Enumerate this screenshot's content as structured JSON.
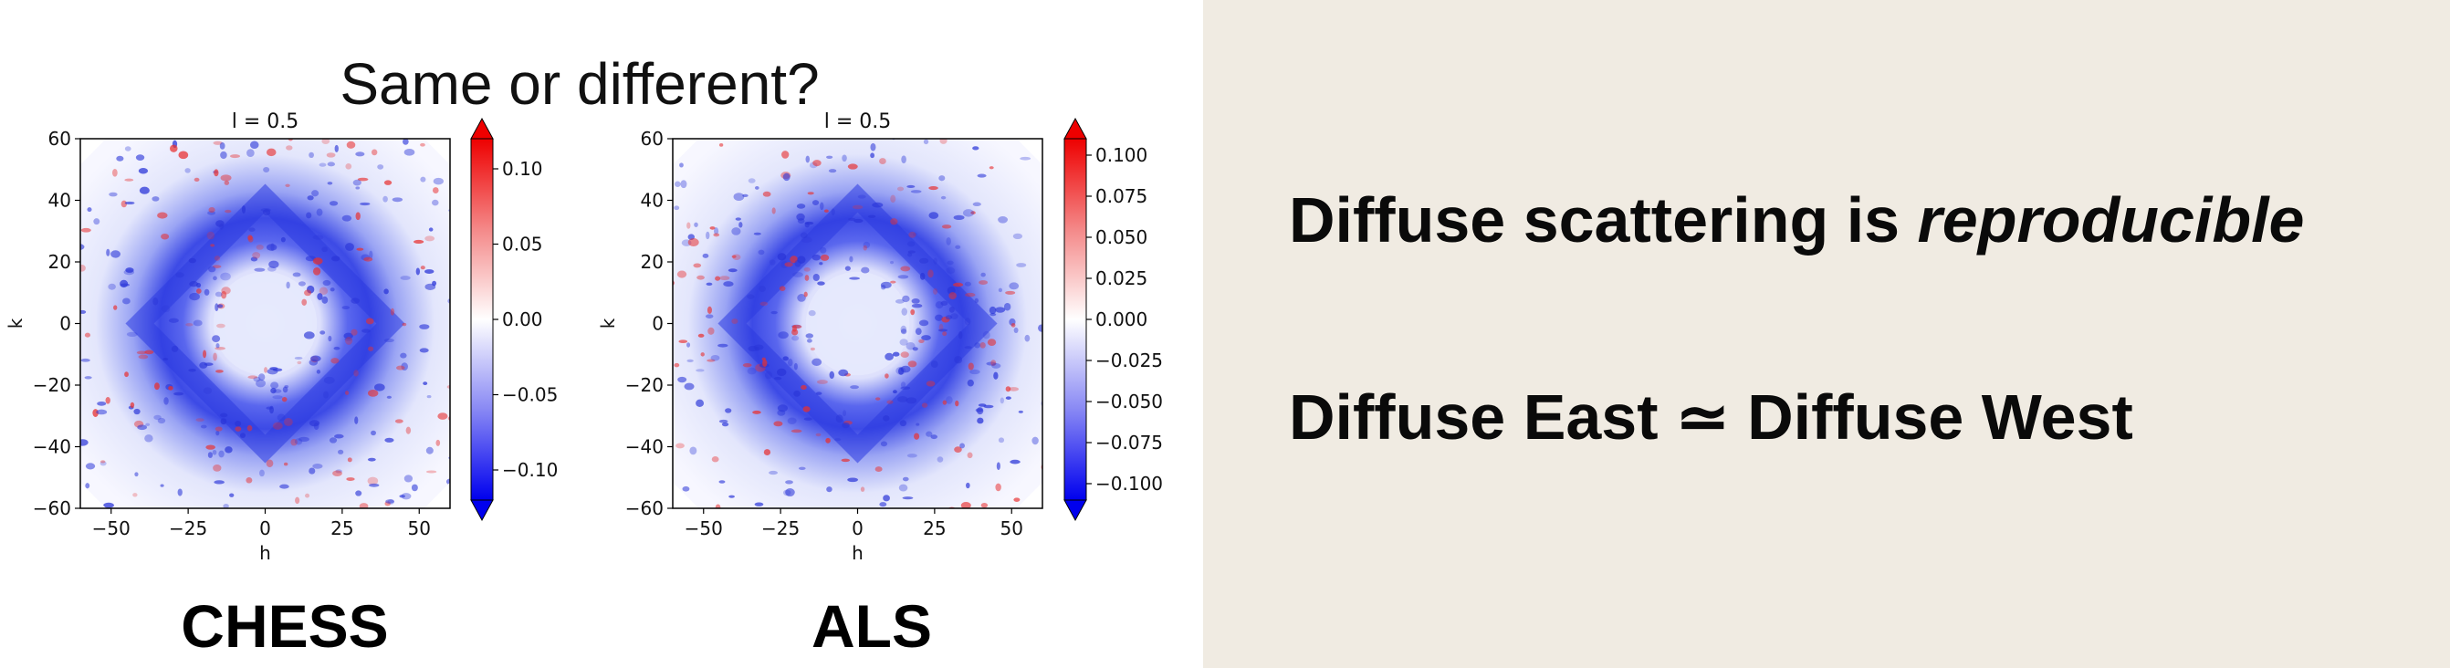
{
  "slide": {
    "question": "Same or different?",
    "headline_prefix": "Diffuse scattering is ",
    "headline_emphasis": "reproducible",
    "equation": "Diffuse East ≃ Diffuse West"
  },
  "colors": {
    "right_background": "#f0ebe2",
    "positive": "#e01010",
    "negative": "#1010e0",
    "neutral": "#ffffff"
  },
  "chart_data": [
    {
      "type": "heatmap",
      "facility": "CHESS",
      "title": "l = 0.5",
      "xlabel": "h",
      "ylabel": "k",
      "xticks": [
        "−50",
        "−25",
        "0",
        "25",
        "50"
      ],
      "yticks": [
        "60",
        "40",
        "20",
        "0",
        "−20",
        "−40",
        "−60"
      ],
      "xlim": [
        -60,
        60
      ],
      "ylim": [
        -60,
        60
      ],
      "colorbar": {
        "ticks": [
          "0.10",
          "0.05",
          "0.00",
          "−0.05",
          "−0.10"
        ],
        "tick_values": [
          0.1,
          0.05,
          0.0,
          -0.05,
          -0.1
        ],
        "range": [
          -0.12,
          0.12
        ],
        "colormap": "bwr",
        "extend": "both"
      }
    },
    {
      "type": "heatmap",
      "facility": "ALS",
      "title": "l = 0.5",
      "xlabel": "h",
      "ylabel": "k",
      "xticks": [
        "−50",
        "−25",
        "0",
        "25",
        "50"
      ],
      "yticks": [
        "60",
        "40",
        "20",
        "0",
        "−20",
        "−40",
        "−60"
      ],
      "xlim": [
        -60,
        60
      ],
      "ylim": [
        -60,
        60
      ],
      "colorbar": {
        "ticks": [
          "0.100",
          "0.075",
          "0.050",
          "0.025",
          "0.000",
          "−0.025",
          "−0.050",
          "−0.075",
          "−0.100"
        ],
        "tick_values": [
          0.1,
          0.075,
          0.05,
          0.025,
          0.0,
          -0.025,
          -0.05,
          -0.075,
          -0.1
        ],
        "range": [
          -0.11,
          0.11
        ],
        "colormap": "bwr",
        "extend": "both"
      }
    }
  ]
}
